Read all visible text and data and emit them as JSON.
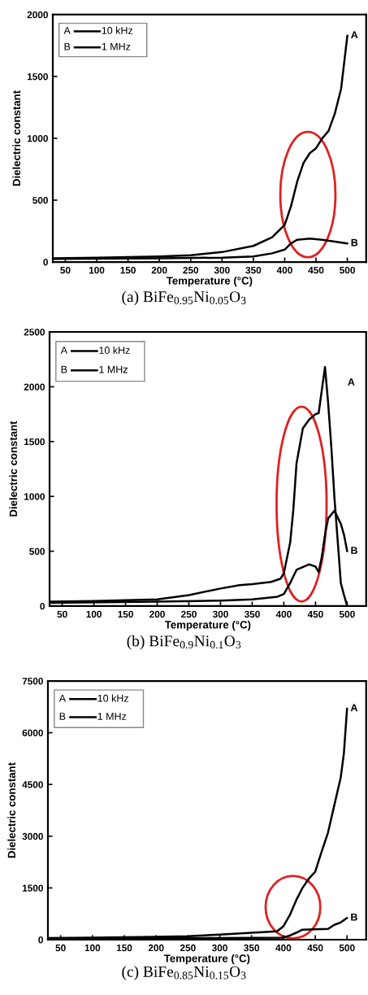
{
  "chart_data": [
    {
      "type": "line",
      "title": "(a) BiFe$_{0.95}$Ni$_{0.05}$O$_{3}$",
      "xlabel": "Temperature (°C)",
      "ylabel": "Dielectric constant",
      "xlim": [
        30,
        530
      ],
      "xticks": [
        50,
        100,
        150,
        200,
        250,
        300,
        350,
        400,
        450,
        500
      ],
      "ylim": [
        0,
        2000
      ],
      "yticks": [
        0,
        500,
        1000,
        1500,
        2000
      ],
      "legend": "top left",
      "series": [
        {
          "name": "10 kHz",
          "color": "#000000",
          "x": [
            30,
            100,
            200,
            250,
            300,
            350,
            380,
            400,
            410,
            420,
            430,
            440,
            450,
            460,
            470,
            480,
            490,
            500
          ],
          "values": [
            30,
            35,
            45,
            55,
            80,
            130,
            200,
            300,
            450,
            650,
            800,
            880,
            920,
            1000,
            1060,
            1200,
            1400,
            1830
          ]
        },
        {
          "name": "1 MHz",
          "color": "#000000",
          "x": [
            30,
            200,
            300,
            350,
            380,
            400,
            410,
            420,
            440,
            460,
            480,
            500
          ],
          "values": [
            25,
            30,
            35,
            45,
            70,
            100,
            150,
            180,
            190,
            180,
            165,
            150
          ]
        }
      ],
      "annotations": [
        "A",
        "B"
      ]
    },
    {
      "type": "line",
      "title": "(b) BiFe$_{0.9}$Ni$_{0.1}$O$_{3}$",
      "xlabel": "Temperature (°C)",
      "ylabel": "Dielectric constant",
      "xlim": [
        30,
        530
      ],
      "xticks": [
        50,
        100,
        150,
        200,
        250,
        300,
        350,
        400,
        450,
        500
      ],
      "ylim": [
        0,
        2500
      ],
      "yticks": [
        0,
        500,
        1000,
        1500,
        2000,
        2500
      ],
      "legend": "top left",
      "series": [
        {
          "name": "10 kHz",
          "color": "#000000",
          "x": [
            30,
            100,
            200,
            250,
            300,
            330,
            350,
            380,
            395,
            400,
            410,
            415,
            420,
            430,
            440,
            450,
            455,
            460,
            465,
            470,
            475,
            480,
            485,
            490,
            495,
            500
          ],
          "values": [
            40,
            45,
            60,
            100,
            160,
            190,
            200,
            220,
            250,
            300,
            580,
            880,
            1300,
            1620,
            1700,
            1750,
            1760,
            1970,
            2180,
            1850,
            1450,
            980,
            600,
            210,
            100,
            0
          ]
        },
        {
          "name": "1 MHz",
          "color": "#000000",
          "x": [
            30,
            200,
            300,
            350,
            390,
            400,
            410,
            420,
            440,
            450,
            455,
            460,
            465,
            470,
            480,
            490,
            495,
            500
          ],
          "values": [
            30,
            40,
            50,
            60,
            85,
            110,
            210,
            330,
            380,
            360,
            310,
            450,
            650,
            800,
            870,
            750,
            650,
            500
          ]
        }
      ],
      "annotations": [
        "A",
        "B"
      ]
    },
    {
      "type": "line",
      "title": "(c) BiFe$_{0.85}$Ni$_{0.15}$O$_{3}$",
      "xlabel": "Temperature (°C)",
      "ylabel": "Dielectric constant",
      "xlim": [
        30,
        530
      ],
      "xticks": [
        50,
        100,
        150,
        200,
        250,
        300,
        350,
        400,
        450,
        500
      ],
      "ylim": [
        0,
        7500
      ],
      "yticks": [
        0,
        1500,
        3000,
        4500,
        6000,
        7500
      ],
      "legend": "top left",
      "series": [
        {
          "name": "10 kHz",
          "color": "#000000",
          "x": [
            30,
            100,
            200,
            250,
            300,
            350,
            390,
            400,
            410,
            420,
            430,
            440,
            450,
            460,
            470,
            480,
            490,
            495,
            500
          ],
          "values": [
            50,
            60,
            80,
            100,
            150,
            200,
            240,
            390,
            710,
            1140,
            1500,
            1770,
            1970,
            2550,
            3100,
            3900,
            4700,
            5400,
            6700
          ]
        },
        {
          "name": "1 MHz",
          "color": "#000000",
          "x": [
            30,
            200,
            300,
            400,
            410,
            420,
            430,
            450,
            470,
            480,
            490,
            500
          ],
          "values": [
            30,
            40,
            50,
            60,
            120,
            200,
            290,
            300,
            310,
            430,
            500,
            630
          ]
        }
      ],
      "annotations": [
        "A",
        "B"
      ]
    }
  ]
}
